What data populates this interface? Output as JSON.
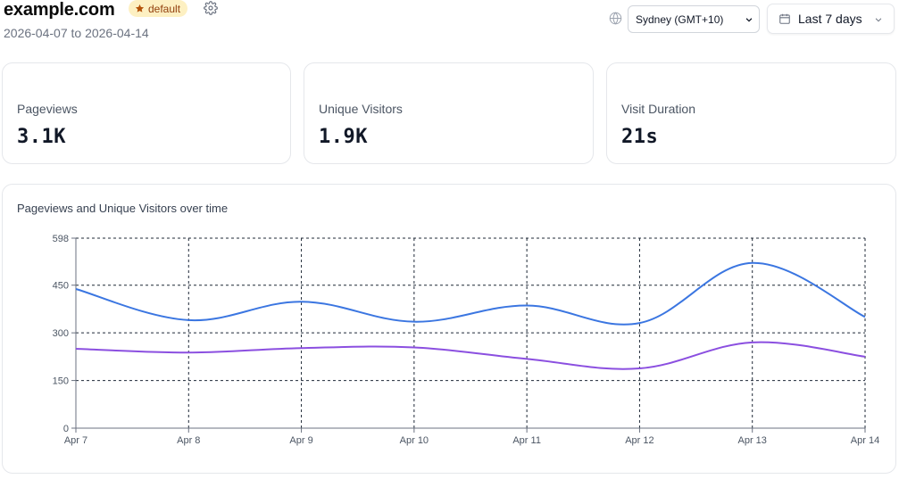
{
  "header": {
    "site": "example.com",
    "badge": "default",
    "date_range": "2026-04-07 to 2026-04-14",
    "timezone": "Sydney (GMT+10)",
    "range_label": "Last 7 days"
  },
  "stats": [
    {
      "label": "Pageviews",
      "value": "3.1K"
    },
    {
      "label": "Unique Visitors",
      "value": "1.9K"
    },
    {
      "label": "Visit Duration",
      "value": "21s"
    }
  ],
  "colors": {
    "pageviews": "#3b76e1",
    "visitors": "#8b4fe0",
    "badge_bg": "#fdf0c2",
    "badge_text": "#92400e"
  },
  "icons": {
    "badge": "star-icon",
    "settings": "gear-icon",
    "timezone": "globe-icon",
    "range": "calendar-icon",
    "dropdown": "chevron-down-icon"
  },
  "chart_data": {
    "type": "line",
    "title": "Pageviews and Unique Visitors over time",
    "categories": [
      "Apr 7",
      "Apr 8",
      "Apr 9",
      "Apr 10",
      "Apr 11",
      "Apr 12",
      "Apr 13",
      "Apr 14"
    ],
    "series": [
      {
        "values": [
          438,
          340,
          398,
          335,
          386,
          331,
          520,
          350
        ]
      },
      {
        "values": [
          250,
          238,
          252,
          254,
          218,
          188,
          270,
          225
        ]
      }
    ],
    "yticks": [
      0,
      150,
      300,
      450,
      598
    ],
    "ylim": [
      0,
      598
    ],
    "grid": true,
    "legend": "none"
  }
}
